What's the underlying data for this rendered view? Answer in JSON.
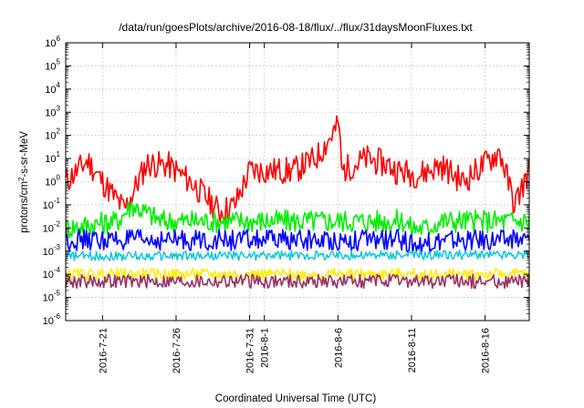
{
  "chart_data": {
    "type": "line",
    "title": "/data/run/goesPlots/archive/2016-08-18/flux/../flux/31daysMoonFluxes.txt",
    "xlabel": "Coordinated Universal Time (UTC)",
    "ylabel": "protons/cm2-s-sr-MeV",
    "yscale": "log",
    "ylim": [
      1e-06,
      1000000.0
    ],
    "xlim": [
      "2016-07-18T12:00",
      "2016-08-19T00:00"
    ],
    "grid": true,
    "y_ticks": [
      "-6",
      "-5",
      "-4",
      "-3",
      "-2",
      "-1",
      "0",
      "1",
      "2",
      "3",
      "4",
      "5",
      "6"
    ],
    "x_ticks": [
      {
        "label": "2016-7-21",
        "date": "2016-07-21"
      },
      {
        "label": "2016-7-26",
        "date": "2016-07-26"
      },
      {
        "label": "2016-7-31",
        "date": "2016-07-31"
      },
      {
        "label": "2016-8-1",
        "date": "2016-08-01"
      },
      {
        "label": "2016-8-6",
        "date": "2016-08-06"
      },
      {
        "label": "2016-8-11",
        "date": "2016-08-11"
      },
      {
        "label": "2016-8-16",
        "date": "2016-08-16"
      }
    ],
    "series": [
      {
        "color": "#ff0000",
        "linewidth": 1.6,
        "spread": 1.2,
        "anchors": [
          [
            "2016-07-18T12:00",
            1.0
          ],
          [
            "2016-07-20T00:00",
            8.0
          ],
          [
            "2016-07-21T00:00",
            1.0
          ],
          [
            "2016-07-22T12:00",
            0.06
          ],
          [
            "2016-07-24T00:00",
            6.0
          ],
          [
            "2016-07-25T12:00",
            5.0
          ],
          [
            "2016-07-27T00:00",
            1.0
          ],
          [
            "2016-07-29T00:00",
            0.05
          ],
          [
            "2016-07-30T00:00",
            0.1
          ],
          [
            "2016-07-31T00:00",
            3.0
          ],
          [
            "2016-08-03T00:00",
            3.0
          ],
          [
            "2016-08-04T12:00",
            10.0
          ],
          [
            "2016-08-06T02:00",
            300.0
          ],
          [
            "2016-08-06T06:00",
            3.0
          ],
          [
            "2016-08-08T00:00",
            10.0
          ],
          [
            "2016-08-09T12:00",
            5.0
          ],
          [
            "2016-08-10T00:00",
            3.0
          ],
          [
            "2016-08-11T12:00",
            2.0
          ],
          [
            "2016-08-13T00:00",
            5.0
          ],
          [
            "2016-08-14T12:00",
            1.0
          ],
          [
            "2016-08-17T00:00",
            20.0
          ],
          [
            "2016-08-18T00:00",
            0.1
          ],
          [
            "2016-08-19T00:00",
            3.0
          ]
        ]
      },
      {
        "color": "#00ee00",
        "linewidth": 1.6,
        "spread": 1.0,
        "anchors": [
          [
            "2016-07-18T12:00",
            0.01
          ],
          [
            "2016-07-22T00:00",
            0.02
          ],
          [
            "2016-07-23T00:00",
            0.1
          ],
          [
            "2016-07-25T00:00",
            0.02
          ],
          [
            "2016-08-05T00:00",
            0.02
          ],
          [
            "2016-08-10T12:00",
            0.02
          ],
          [
            "2016-08-11T00:00",
            0.01
          ],
          [
            "2016-08-12T00:00",
            0.01
          ],
          [
            "2016-08-13T00:00",
            0.02
          ],
          [
            "2016-08-19T00:00",
            0.02
          ]
        ]
      },
      {
        "color": "#0000ff",
        "linewidth": 1.6,
        "spread": 0.9,
        "anchors": [
          [
            "2016-07-18T12:00",
            0.003
          ],
          [
            "2016-08-10T12:00",
            0.003
          ],
          [
            "2016-08-11T00:00",
            0.002
          ],
          [
            "2016-08-12T00:00",
            0.002
          ],
          [
            "2016-08-13T00:00",
            0.003
          ],
          [
            "2016-08-19T00:00",
            0.003
          ]
        ]
      },
      {
        "color": "#00c4d8",
        "linewidth": 1.4,
        "spread": 0.4,
        "anchors": [
          [
            "2016-07-18T12:00",
            0.0006
          ],
          [
            "2016-08-19T00:00",
            0.0007
          ]
        ]
      },
      {
        "color": "#ffee00",
        "linewidth": 1.6,
        "spread": 0.5,
        "anchors": [
          [
            "2016-07-18T12:00",
            0.0001
          ],
          [
            "2016-08-19T00:00",
            0.0001
          ]
        ]
      },
      {
        "color": "#993366",
        "linewidth": 1.6,
        "spread": 0.6,
        "anchors": [
          [
            "2016-07-18T12:00",
            5e-05
          ],
          [
            "2016-08-19T00:00",
            5e-05
          ]
        ]
      }
    ]
  }
}
